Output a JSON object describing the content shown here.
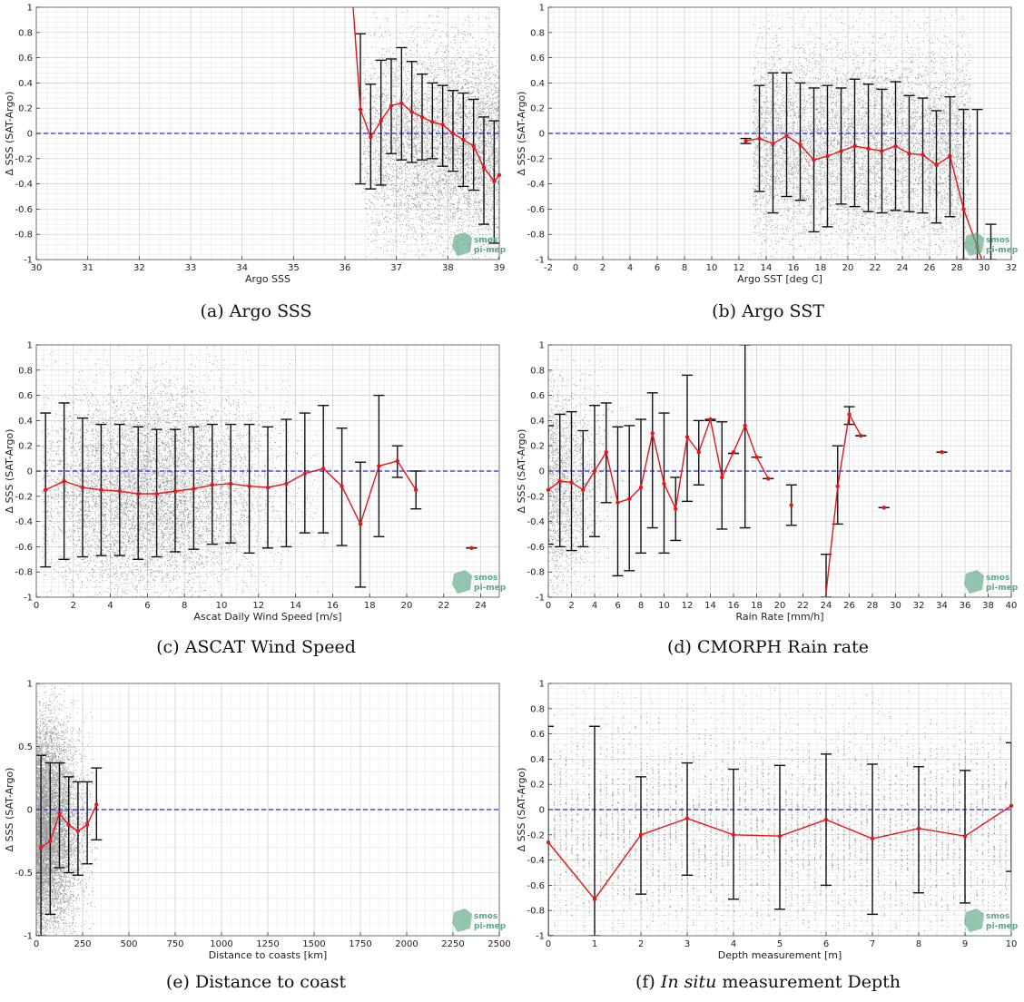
{
  "logo": {
    "line1": "smos",
    "line2": "pi-mep",
    "color": "#5aa884"
  },
  "colors": {
    "scatter": "#444444",
    "errorbar": "#111111",
    "line": "#e8141a",
    "zero": "#1c2ad8"
  },
  "chart_data": [
    {
      "id": "a",
      "type": "scatter",
      "caption": "(a) Argo SSS",
      "xlabel": "Argo SSS",
      "ylabel": "Δ SSS (SAT-Argo)",
      "xlim": [
        30,
        39
      ],
      "ylim": [
        -1,
        1
      ],
      "xticks": [
        30,
        31,
        32,
        33,
        34,
        35,
        36,
        37,
        38,
        39
      ],
      "yticks": [
        -1,
        -0.8,
        -0.6,
        -0.4,
        -0.2,
        0,
        0.2,
        0.4,
        0.6,
        0.8,
        1
      ],
      "scatter_region": {
        "x": [
          36.3,
          39
        ],
        "y": [
          -1,
          1
        ],
        "center": -0.1,
        "density": 6500
      },
      "mean_line": [
        [
          36.15,
          1.05
        ],
        [
          36.3,
          0.19
        ],
        [
          36.5,
          -0.03
        ],
        [
          36.7,
          0.1
        ],
        [
          36.9,
          0.22
        ],
        [
          37.1,
          0.24
        ],
        [
          37.3,
          0.17
        ],
        [
          37.5,
          0.13
        ],
        [
          37.7,
          0.09
        ],
        [
          37.9,
          0.07
        ],
        [
          38.1,
          0.0
        ],
        [
          38.3,
          -0.05
        ],
        [
          38.5,
          -0.1
        ],
        [
          38.7,
          -0.27
        ],
        [
          38.9,
          -0.38
        ],
        [
          39.0,
          -0.33
        ]
      ],
      "error_bars": [
        [
          36.3,
          -0.4,
          0.79
        ],
        [
          36.5,
          -0.44,
          0.39
        ],
        [
          36.7,
          -0.41,
          0.58
        ],
        [
          36.9,
          -0.16,
          0.59
        ],
        [
          37.1,
          -0.21,
          0.68
        ],
        [
          37.3,
          -0.23,
          0.57
        ],
        [
          37.5,
          -0.21,
          0.47
        ],
        [
          37.7,
          -0.2,
          0.4
        ],
        [
          37.9,
          -0.26,
          0.38
        ],
        [
          38.1,
          -0.3,
          0.34
        ],
        [
          38.3,
          -0.42,
          0.32
        ],
        [
          38.5,
          -0.45,
          0.27
        ],
        [
          38.7,
          -0.72,
          0.13
        ],
        [
          38.9,
          -0.87,
          0.1
        ]
      ]
    },
    {
      "id": "b",
      "type": "scatter",
      "caption": "(b) Argo SST",
      "xlabel": "Argo SST [deg C]",
      "ylabel": "Δ SSS (SAT-Argo)",
      "xlim": [
        -2,
        32
      ],
      "ylim": [
        -1,
        1
      ],
      "xticks": [
        -2,
        0,
        2,
        4,
        6,
        8,
        10,
        12,
        14,
        16,
        18,
        20,
        22,
        24,
        26,
        28,
        30,
        32
      ],
      "yticks": [
        -1,
        -0.8,
        -0.6,
        -0.4,
        -0.2,
        0,
        0.2,
        0.4,
        0.6,
        0.8,
        1
      ],
      "scatter_region": {
        "x": [
          13,
          29
        ],
        "y": [
          -1,
          1
        ],
        "center": -0.1,
        "density": 8000
      },
      "mean_line": [
        [
          12.5,
          -0.06
        ],
        [
          13.5,
          -0.04
        ],
        [
          14.5,
          -0.08
        ],
        [
          15.5,
          -0.02
        ],
        [
          16.5,
          -0.09
        ],
        [
          17.5,
          -0.21
        ],
        [
          18.5,
          -0.18
        ],
        [
          19.5,
          -0.14
        ],
        [
          20.5,
          -0.1
        ],
        [
          21.5,
          -0.12
        ],
        [
          22.5,
          -0.14
        ],
        [
          23.5,
          -0.1
        ],
        [
          24.5,
          -0.16
        ],
        [
          25.5,
          -0.17
        ],
        [
          26.5,
          -0.25
        ],
        [
          27.5,
          -0.18
        ],
        [
          28.5,
          -0.6
        ],
        [
          29.5,
          -0.9
        ],
        [
          30,
          -1.05
        ]
      ],
      "error_bars": [
        [
          12.5,
          -0.08,
          -0.04
        ],
        [
          13.5,
          -0.46,
          0.38
        ],
        [
          14.5,
          -0.63,
          0.48
        ],
        [
          15.5,
          -0.5,
          0.48
        ],
        [
          16.5,
          -0.53,
          0.4
        ],
        [
          17.5,
          -0.78,
          0.36
        ],
        [
          18.5,
          -0.74,
          0.38
        ],
        [
          19.5,
          -0.56,
          0.36
        ],
        [
          20.5,
          -0.58,
          0.43
        ],
        [
          21.5,
          -0.62,
          0.39
        ],
        [
          22.5,
          -0.63,
          0.35
        ],
        [
          23.5,
          -0.61,
          0.41
        ],
        [
          24.5,
          -0.62,
          0.3
        ],
        [
          25.5,
          -0.63,
          0.28
        ],
        [
          26.5,
          -0.71,
          0.18
        ],
        [
          27.5,
          -0.66,
          0.29
        ],
        [
          28.5,
          -1.0,
          0.19
        ],
        [
          29.5,
          -1.0,
          0.19
        ],
        [
          30.5,
          -1.0,
          -0.72
        ]
      ]
    },
    {
      "id": "c",
      "type": "scatter",
      "caption": "(c) ASCAT Wind Speed",
      "xlabel": "Ascat Daily Wind Speed [m/s]",
      "ylabel": "Δ SSS (SAT-Argo)",
      "xlim": [
        0,
        25
      ],
      "ylim": [
        -1,
        1
      ],
      "xticks": [
        0,
        2,
        4,
        6,
        8,
        10,
        12,
        14,
        16,
        18,
        20,
        22,
        24
      ],
      "yticks": [
        -1,
        -0.8,
        -0.6,
        -0.4,
        -0.2,
        0,
        0.2,
        0.4,
        0.6,
        0.8,
        1
      ],
      "scatter_region": {
        "x": [
          0.3,
          16
        ],
        "y": [
          -1,
          1
        ],
        "center": -0.15,
        "density": 9000
      },
      "mean_line": [
        [
          0.5,
          -0.15
        ],
        [
          1.5,
          -0.08
        ],
        [
          2.5,
          -0.13
        ],
        [
          3.5,
          -0.15
        ],
        [
          4.5,
          -0.16
        ],
        [
          5.5,
          -0.18
        ],
        [
          6.5,
          -0.18
        ],
        [
          7.5,
          -0.16
        ],
        [
          8.5,
          -0.14
        ],
        [
          9.5,
          -0.11
        ],
        [
          10.5,
          -0.1
        ],
        [
          11.5,
          -0.12
        ],
        [
          12.5,
          -0.13
        ],
        [
          13.5,
          -0.1
        ],
        [
          14.5,
          -0.02
        ],
        [
          15.5,
          0.02
        ],
        [
          16.5,
          -0.12
        ],
        [
          17.5,
          -0.42
        ],
        [
          18.5,
          0.04
        ],
        [
          19.5,
          0.08
        ],
        [
          20.5,
          -0.15
        ]
      ],
      "isolated_points": [
        [
          23.5,
          -0.61
        ]
      ],
      "error_bars": [
        [
          0.5,
          -0.76,
          0.46
        ],
        [
          1.5,
          -0.7,
          0.54
        ],
        [
          2.5,
          -0.68,
          0.42
        ],
        [
          3.5,
          -0.67,
          0.37
        ],
        [
          4.5,
          -0.67,
          0.37
        ],
        [
          5.5,
          -0.7,
          0.35
        ],
        [
          6.5,
          -0.68,
          0.33
        ],
        [
          7.5,
          -0.64,
          0.33
        ],
        [
          8.5,
          -0.62,
          0.35
        ],
        [
          9.5,
          -0.58,
          0.37
        ],
        [
          10.5,
          -0.57,
          0.37
        ],
        [
          11.5,
          -0.65,
          0.37
        ],
        [
          12.5,
          -0.61,
          0.35
        ],
        [
          13.5,
          -0.6,
          0.41
        ],
        [
          14.5,
          -0.49,
          0.46
        ],
        [
          15.5,
          -0.49,
          0.52
        ],
        [
          16.5,
          -0.59,
          0.34
        ],
        [
          17.5,
          -0.92,
          0.07
        ],
        [
          18.5,
          -0.52,
          0.6
        ],
        [
          19.5,
          -0.05,
          0.2
        ],
        [
          20.5,
          -0.3,
          0.0
        ],
        [
          23.5,
          -0.61,
          -0.61
        ]
      ]
    },
    {
      "id": "d",
      "type": "scatter",
      "caption": "(d) CMORPH Rain rate",
      "xlabel": "Rain Rate [mm/h]",
      "ylabel": "Δ SSS (SAT-Argo)",
      "xlim": [
        0,
        40
      ],
      "ylim": [
        -1,
        1
      ],
      "xticks": [
        0,
        2,
        4,
        6,
        8,
        10,
        12,
        14,
        16,
        18,
        20,
        22,
        24,
        26,
        28,
        30,
        32,
        34,
        36,
        38,
        40
      ],
      "yticks": [
        -1,
        -0.8,
        -0.6,
        -0.4,
        -0.2,
        0,
        0.2,
        0.4,
        0.6,
        0.8,
        1
      ],
      "scatter_region": {
        "x": [
          0,
          6
        ],
        "y": [
          -1,
          1
        ],
        "center": -0.1,
        "density": 1800
      },
      "mean_line": [
        [
          0,
          -0.15
        ],
        [
          1,
          -0.08
        ],
        [
          2,
          -0.09
        ],
        [
          3,
          -0.15
        ],
        [
          4,
          0.0
        ],
        [
          5,
          0.15
        ],
        [
          6,
          -0.25
        ],
        [
          7,
          -0.22
        ],
        [
          8,
          -0.13
        ],
        [
          9,
          0.3
        ],
        [
          10,
          -0.1
        ],
        [
          11,
          -0.3
        ],
        [
          12,
          0.27
        ],
        [
          13,
          0.15
        ],
        [
          14,
          0.41
        ],
        [
          15,
          -0.05
        ],
        [
          16,
          0.15
        ],
        [
          17,
          0.36
        ],
        [
          18,
          0.11
        ],
        [
          19,
          -0.06
        ]
      ],
      "mean_line_2": [
        [
          23.9,
          -1.05
        ],
        [
          25,
          -0.12
        ],
        [
          26,
          0.45
        ],
        [
          27,
          0.28
        ]
      ],
      "isolated_points": [
        [
          21,
          -0.27
        ],
        [
          29,
          -0.29
        ],
        [
          34,
          0.15
        ]
      ],
      "error_bars": [
        [
          0,
          -0.58,
          0.36
        ],
        [
          1,
          -0.6,
          0.45
        ],
        [
          2,
          -0.63,
          0.47
        ],
        [
          3,
          -0.6,
          0.32
        ],
        [
          4,
          -0.52,
          0.52
        ],
        [
          5,
          -0.25,
          0.54
        ],
        [
          6,
          -0.83,
          0.35
        ],
        [
          7,
          -0.79,
          0.36
        ],
        [
          8,
          -0.65,
          0.41
        ],
        [
          9,
          -0.45,
          0.62
        ],
        [
          10,
          -0.65,
          0.46
        ],
        [
          11,
          -0.55,
          -0.05
        ],
        [
          12,
          -0.24,
          0.76
        ],
        [
          13,
          -0.11,
          0.4
        ],
        [
          14,
          0.4,
          0.41
        ],
        [
          15,
          -0.46,
          0.39
        ],
        [
          16,
          0.14,
          0.14
        ],
        [
          17,
          -0.45,
          1.0
        ],
        [
          18,
          0.11,
          0.11
        ],
        [
          19,
          -0.06,
          -0.06
        ],
        [
          21,
          -0.43,
          -0.11
        ],
        [
          24,
          -1.0,
          -0.66
        ],
        [
          25,
          -0.42,
          0.2
        ],
        [
          26,
          0.37,
          0.51
        ],
        [
          27,
          0.28,
          0.28
        ],
        [
          29,
          -0.29,
          -0.29
        ],
        [
          34,
          0.15,
          0.15
        ]
      ]
    },
    {
      "id": "e",
      "type": "scatter",
      "caption": "(e) Distance to coast",
      "xlabel": "Distance to coasts [km]",
      "ylabel": "Δ SSS (SAT-Argo)",
      "xlim": [
        0,
        2500
      ],
      "ylim": [
        -1,
        1
      ],
      "xticks": [
        0,
        250,
        500,
        750,
        1000,
        1250,
        1500,
        1750,
        2000,
        2250,
        2500
      ],
      "yticks": [
        -1,
        -0.5,
        0,
        0.5,
        1
      ],
      "scatter_region": {
        "x": [
          0,
          330
        ],
        "y": [
          -1,
          1
        ],
        "center": -0.15,
        "density": 9000
      },
      "mean_line": [
        [
          25,
          -0.3
        ],
        [
          75,
          -0.25
        ],
        [
          125,
          -0.03
        ],
        [
          175,
          -0.12
        ],
        [
          225,
          -0.17
        ],
        [
          275,
          -0.12
        ],
        [
          325,
          0.04
        ]
      ],
      "error_bars": [
        [
          25,
          -1.0,
          0.43
        ],
        [
          75,
          -0.83,
          0.37
        ],
        [
          125,
          -0.46,
          0.37
        ],
        [
          175,
          -0.5,
          0.26
        ],
        [
          225,
          -0.52,
          0.22
        ],
        [
          275,
          -0.43,
          0.22
        ],
        [
          325,
          -0.24,
          0.33
        ]
      ]
    },
    {
      "id": "f",
      "type": "scatter",
      "caption_prefix": "(f) ",
      "caption_italic": "In situ",
      "caption_suffix": " measurement Depth",
      "xlabel": "Depth measurement [m]",
      "ylabel": "Δ SSS (SAT-Argo)",
      "xlim": [
        0,
        10
      ],
      "ylim": [
        -1,
        1
      ],
      "xticks": [
        0,
        1,
        2,
        3,
        4,
        5,
        6,
        7,
        8,
        9,
        10
      ],
      "yticks": [
        -1,
        -0.8,
        -0.6,
        -0.4,
        -0.2,
        0,
        0.2,
        0.4,
        0.6,
        0.8,
        1
      ],
      "scatter_region": {
        "x": [
          0,
          10
        ],
        "y": [
          -1,
          1
        ],
        "center": -0.15,
        "density": 7000
      },
      "mean_line": [
        [
          0,
          -0.26
        ],
        [
          1,
          -0.71
        ],
        [
          2,
          -0.2
        ],
        [
          3,
          -0.07
        ],
        [
          4,
          -0.2
        ],
        [
          5,
          -0.21
        ],
        [
          6,
          -0.08
        ],
        [
          7,
          -0.23
        ],
        [
          8,
          -0.15
        ],
        [
          9,
          -0.21
        ],
        [
          10,
          0.03
        ]
      ],
      "error_bars": [
        [
          0,
          -1.0,
          0.66
        ],
        [
          1,
          -1.0,
          0.66
        ],
        [
          2,
          -0.67,
          0.26
        ],
        [
          3,
          -0.52,
          0.37
        ],
        [
          4,
          -0.71,
          0.32
        ],
        [
          5,
          -0.79,
          0.35
        ],
        [
          6,
          -0.6,
          0.44
        ],
        [
          7,
          -0.83,
          0.36
        ],
        [
          8,
          -0.66,
          0.34
        ],
        [
          9,
          -0.74,
          0.31
        ],
        [
          10,
          -0.49,
          0.53
        ]
      ]
    }
  ]
}
